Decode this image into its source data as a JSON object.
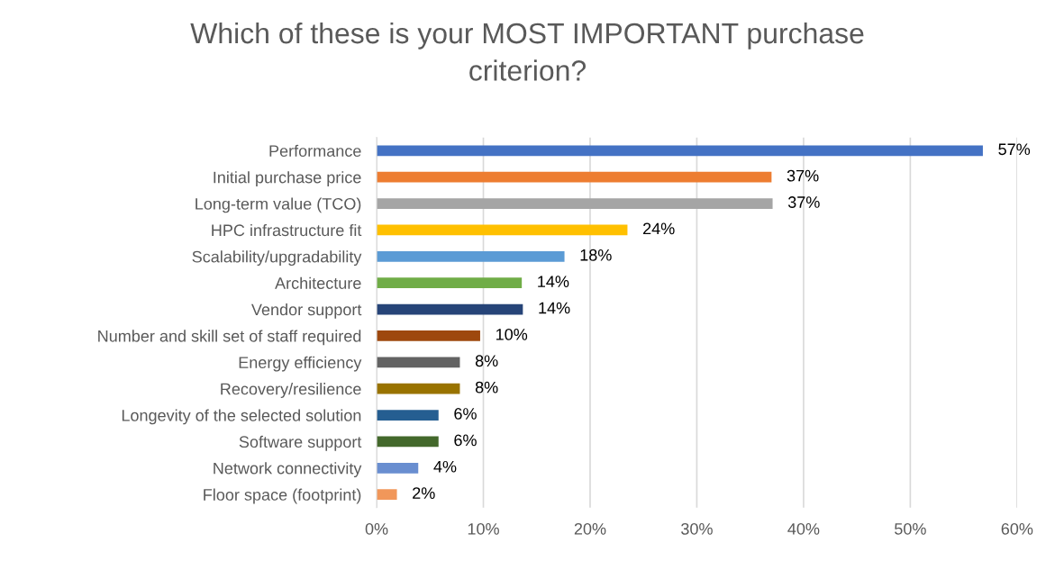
{
  "chart_data": {
    "type": "bar",
    "orientation": "horizontal",
    "title": "Which of these is your MOST IMPORTANT purchase criterion?",
    "categories": [
      "Performance",
      "Initial purchase price",
      "Long-term value (TCO)",
      "HPC infrastructure fit",
      "Scalability/upgradability",
      "Architecture",
      "Vendor support",
      "Number and skill set of staff required",
      "Energy efficiency",
      "Recovery/resilience",
      "Longevity of the selected solution",
      "Software support",
      "Network connectivity",
      "Floor space (footprint)"
    ],
    "values": [
      56.8,
      37.0,
      37.1,
      23.5,
      17.6,
      13.6,
      13.7,
      9.7,
      7.8,
      7.8,
      5.8,
      5.8,
      3.9,
      1.9
    ],
    "value_labels": [
      "57%",
      "37%",
      "37%",
      "24%",
      "18%",
      "14%",
      "14%",
      "10%",
      "8%",
      "8%",
      "6%",
      "6%",
      "4%",
      "2%"
    ],
    "colors": [
      "#4472c4",
      "#ed7d31",
      "#a5a5a5",
      "#ffc000",
      "#5b9bd5",
      "#70ad47",
      "#264478",
      "#9e480e",
      "#636363",
      "#997300",
      "#255e91",
      "#43682b",
      "#698ed0",
      "#f1975a"
    ],
    "xlim": [
      0,
      60
    ],
    "xticks": [
      {
        "value": 0,
        "label": "0%"
      },
      {
        "value": 10,
        "label": "10%"
      },
      {
        "value": 20,
        "label": "20%"
      },
      {
        "value": 30,
        "label": "30%"
      },
      {
        "value": 40,
        "label": "40%"
      },
      {
        "value": 50,
        "label": "50%"
      },
      {
        "value": 60,
        "label": "60%"
      }
    ],
    "grid": "x"
  }
}
